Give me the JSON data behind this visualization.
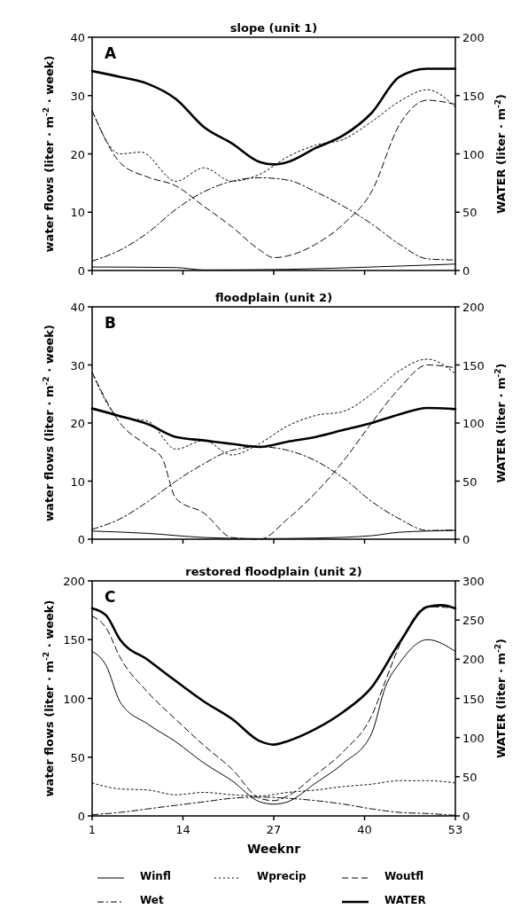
{
  "chart_data": [
    {
      "type": "line",
      "title": "slope (unit 1)",
      "ylabel": "water flows (liter · m$^{-2}$ · week)",
      "y2label": "WATER (liter · m$^{-2}$)",
      "annotations": [
        "A"
      ],
      "xlim": [
        1,
        53
      ],
      "xticks": [
        1,
        14,
        27,
        40,
        53
      ],
      "ylim": [
        0,
        40
      ],
      "yticks": [
        0,
        10,
        20,
        30,
        40
      ],
      "y2lim": [
        0,
        200
      ],
      "y2ticks": [
        0,
        50,
        100,
        150,
        200
      ],
      "tick_labels": "y",
      "legend": false,
      "series": [
        {
          "color": "#000000",
          "line_style": "solid",
          "x": [
            1,
            13,
            17,
            29,
            41,
            53
          ],
          "values": [
            0.6,
            0.5,
            0.1,
            0.2,
            0.6,
            1.1
          ]
        },
        {
          "color": "#000000",
          "line_style": "dotted",
          "x": [
            1,
            5,
            8,
            13,
            17,
            21,
            25,
            29,
            33,
            37,
            41,
            45,
            49,
            53
          ],
          "values": [
            27.4,
            20,
            20.3,
            15.3,
            17.6,
            15.3,
            16.5,
            19.5,
            21.5,
            22.5,
            25.5,
            29,
            31,
            28
          ]
        },
        {
          "color": "#000000",
          "line_style": "dashed",
          "x": [
            1,
            5,
            9,
            13,
            17,
            21,
            25,
            27,
            29,
            33,
            37,
            41,
            45,
            49,
            53
          ],
          "values": [
            27.4,
            18.5,
            16,
            14.5,
            11,
            7.5,
            3.5,
            2.2,
            2.5,
            4.5,
            8,
            13.5,
            25,
            29.2,
            28.5
          ]
        },
        {
          "color": "#000000",
          "line_style": "dashdot",
          "x": [
            1,
            5,
            9,
            13,
            17,
            21,
            25,
            29,
            33,
            37,
            41,
            45,
            49,
            53
          ],
          "values": [
            1.6,
            3.5,
            6.5,
            10.5,
            13.5,
            15.3,
            15.9,
            15.5,
            13.5,
            11,
            8,
            4.5,
            2,
            1.8
          ]
        },
        {
          "color": "#000000",
          "line_style": "solid",
          "axis": "y2",
          "x": [
            1,
            5,
            9,
            13,
            17,
            21,
            25,
            27,
            29,
            33,
            37,
            41,
            45,
            49,
            53
          ],
          "values": [
            171,
            166,
            160,
            147,
            123,
            109,
            93,
            91,
            93,
            105,
            116,
            135,
            166,
            173,
            173
          ]
        }
      ]
    },
    {
      "type": "line",
      "title": "floodplain (unit 2)",
      "ylabel": "water flows (liter · m$^{-2}$ · week)",
      "y2label": "WATER (liter · m$^{-2}$)",
      "annotations": [
        "B"
      ],
      "xlim": [
        1,
        53
      ],
      "xticks": [
        1,
        14,
        27,
        40,
        53
      ],
      "ylim": [
        0,
        40
      ],
      "yticks": [
        0,
        10,
        20,
        30,
        40
      ],
      "y2lim": [
        0,
        200
      ],
      "y2ticks": [
        0,
        50,
        100,
        150,
        200
      ],
      "tick_labels": "y",
      "legend": false,
      "series": [
        {
          "color": "#000000",
          "line_style": "solid",
          "x": [
            1,
            9,
            17,
            25,
            33,
            41,
            45,
            53
          ],
          "values": [
            1.4,
            1,
            0.3,
            0.1,
            0.2,
            0.6,
            1.2,
            1.5
          ]
        },
        {
          "color": "#000000",
          "line_style": "dotted",
          "x": [
            1,
            5,
            9,
            13,
            17,
            21,
            25,
            29,
            33,
            37,
            41,
            45,
            49,
            53
          ],
          "values": [
            28.7,
            21,
            20.3,
            15.5,
            17,
            14.5,
            16.5,
            19.5,
            21.3,
            22,
            25,
            29,
            31,
            28.5
          ]
        },
        {
          "color": "#000000",
          "line_style": "dashed",
          "x": [
            1,
            5,
            9,
            11,
            13,
            17,
            21,
            25,
            29,
            33,
            37,
            41,
            45,
            49,
            53
          ],
          "values": [
            28.7,
            20,
            16,
            14,
            7,
            4.5,
            0.3,
            0,
            3.5,
            8,
            13.5,
            20,
            26,
            30,
            29.5
          ]
        },
        {
          "color": "#000000",
          "line_style": "dashdot",
          "x": [
            1,
            5,
            9,
            13,
            17,
            21,
            25,
            29,
            33,
            37,
            41,
            45,
            49,
            53
          ],
          "values": [
            1.7,
            3.5,
            6.5,
            10,
            13,
            15.3,
            15.9,
            15.3,
            13.5,
            10.5,
            6.5,
            3.5,
            1.5,
            1.6
          ]
        },
        {
          "color": "#000000",
          "line_style": "solid",
          "axis": "y2",
          "x": [
            1,
            5,
            9,
            13,
            17,
            21,
            25,
            29,
            33,
            37,
            41,
            45,
            49,
            53
          ],
          "values": [
            112.5,
            106,
            99,
            88,
            85,
            82,
            79.5,
            84,
            88,
            94,
            100,
            107.5,
            113,
            112
          ]
        }
      ]
    },
    {
      "type": "line",
      "title": "restored floodplain (unit 2)",
      "xlabel": "Weeknr",
      "ylabel": "water flows (liter · m$^{-2}$ · week)",
      "y2label": "WATER (liter · m$^{-2}$)",
      "annotations": [
        "C"
      ],
      "xlim": [
        1,
        53
      ],
      "xticks": [
        1,
        14,
        27,
        40,
        53
      ],
      "ylim": [
        0,
        200
      ],
      "yticks": [
        0,
        50,
        100,
        150,
        200
      ],
      "y2lim": [
        0,
        300
      ],
      "y2ticks": [
        0,
        50,
        100,
        150,
        200,
        250,
        300
      ],
      "legend": "bottom",
      "series": [
        {
          "name": "Winfl",
          "color": "#000000",
          "line_style": "solid",
          "x": [
            1,
            3,
            5,
            9,
            13,
            17,
            21,
            25,
            27,
            29,
            33,
            37,
            41,
            43,
            45,
            49,
            53
          ],
          "values": [
            140,
            128,
            97,
            78,
            63,
            45,
            30,
            12,
            10,
            12,
            28,
            45,
            70,
            110,
            130,
            150,
            140
          ]
        },
        {
          "name": "Wprecip",
          "color": "#000000",
          "line_style": "dotted",
          "x": [
            1,
            5,
            9,
            13,
            17,
            21,
            25,
            29,
            33,
            37,
            41,
            45,
            49,
            53
          ],
          "values": [
            28,
            23,
            22,
            18,
            20,
            18,
            17,
            20,
            22,
            25,
            27,
            30,
            30,
            28
          ]
        },
        {
          "name": "Woutfl",
          "color": "#000000",
          "line_style": "dashed",
          "x": [
            1,
            3,
            5,
            9,
            13,
            17,
            21,
            25,
            27,
            29,
            33,
            37,
            41,
            43,
            45,
            49,
            53
          ],
          "values": [
            170,
            160,
            135,
            105,
            82,
            60,
            40,
            15,
            13,
            17,
            35,
            55,
            85,
            115,
            145,
            178,
            177
          ]
        },
        {
          "name": "Wet",
          "color": "#000000",
          "line_style": "dashdot",
          "x": [
            1,
            5,
            9,
            13,
            17,
            21,
            25,
            29,
            33,
            37,
            41,
            45,
            49,
            53
          ],
          "values": [
            1,
            3,
            6,
            9,
            12,
            15,
            16,
            15,
            13,
            10,
            6,
            3,
            2,
            0.5
          ]
        },
        {
          "name": "WATER",
          "color": "#000000",
          "line_style": "solid",
          "axis": "y2",
          "x": [
            1,
            3,
            5,
            9,
            13,
            17,
            21,
            25,
            27,
            29,
            33,
            37,
            41,
            45,
            49,
            51,
            53
          ],
          "values": [
            265,
            256,
            225,
            199,
            172,
            146,
            124,
            95.5,
            91,
            95.5,
            111,
            133,
            164,
            221,
            267,
            269,
            265
          ]
        }
      ]
    }
  ]
}
